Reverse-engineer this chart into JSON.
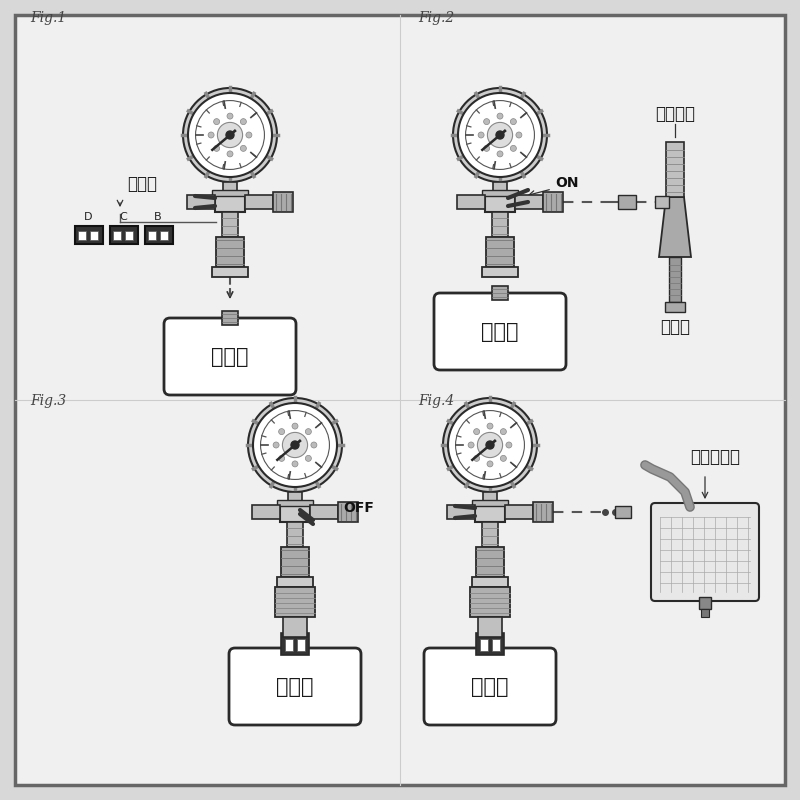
{
  "bg_outer": "#d8d8d8",
  "bg_inner": "#f0f0f0",
  "border_color": "#666666",
  "line_color": "#2a2a2a",
  "component_light": "#d8d8d8",
  "component_mid": "#b8b8b8",
  "component_dark": "#888888",
  "white": "#ffffff",
  "dark_fill": "#333333",
  "text_dark": "#1a1a1a",
  "fig1_label": "Fig.1",
  "fig2_label": "Fig.2",
  "fig3_label": "Fig.3",
  "fig4_label": "Fig.4",
  "label_rubber": "橡胶头",
  "label_radiator": "散热器",
  "label_on": "ON",
  "label_off": "OFF",
  "label_air": "空气连接",
  "label_vacuum": "真空泵",
  "label_coolant": "冷却液软管",
  "label_D": "D",
  "label_C": "C",
  "label_B": "B"
}
